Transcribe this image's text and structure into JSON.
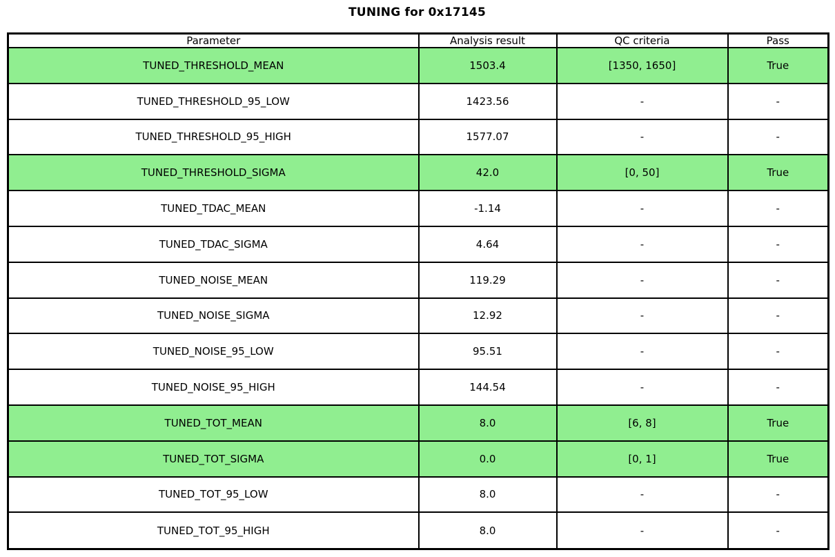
{
  "title": "TUNING for 0x17145",
  "colors": {
    "highlight_green": "#90EE90",
    "border": "#000000",
    "background": "#ffffff"
  },
  "table": {
    "columns": [
      "Parameter",
      "Analysis result",
      "QC criteria",
      "Pass"
    ],
    "rows": [
      {
        "parameter": "TUNED_THRESHOLD_MEAN",
        "result": "1503.4",
        "qc": "[1350, 1650]",
        "pass": "True",
        "highlight": true
      },
      {
        "parameter": "TUNED_THRESHOLD_95_LOW",
        "result": "1423.56",
        "qc": "-",
        "pass": "-",
        "highlight": false
      },
      {
        "parameter": "TUNED_THRESHOLD_95_HIGH",
        "result": "1577.07",
        "qc": "-",
        "pass": "-",
        "highlight": false
      },
      {
        "parameter": "TUNED_THRESHOLD_SIGMA",
        "result": "42.0",
        "qc": "[0, 50]",
        "pass": "True",
        "highlight": true
      },
      {
        "parameter": "TUNED_TDAC_MEAN",
        "result": "-1.14",
        "qc": "-",
        "pass": "-",
        "highlight": false
      },
      {
        "parameter": "TUNED_TDAC_SIGMA",
        "result": "4.64",
        "qc": "-",
        "pass": "-",
        "highlight": false
      },
      {
        "parameter": "TUNED_NOISE_MEAN",
        "result": "119.29",
        "qc": "-",
        "pass": "-",
        "highlight": false
      },
      {
        "parameter": "TUNED_NOISE_SIGMA",
        "result": "12.92",
        "qc": "-",
        "pass": "-",
        "highlight": false
      },
      {
        "parameter": "TUNED_NOISE_95_LOW",
        "result": "95.51",
        "qc": "-",
        "pass": "-",
        "highlight": false
      },
      {
        "parameter": "TUNED_NOISE_95_HIGH",
        "result": "144.54",
        "qc": "-",
        "pass": "-",
        "highlight": false
      },
      {
        "parameter": "TUNED_TOT_MEAN",
        "result": "8.0",
        "qc": "[6, 8]",
        "pass": "True",
        "highlight": true
      },
      {
        "parameter": "TUNED_TOT_SIGMA",
        "result": "0.0",
        "qc": "[0, 1]",
        "pass": "True",
        "highlight": true
      },
      {
        "parameter": "TUNED_TOT_95_LOW",
        "result": "8.0",
        "qc": "-",
        "pass": "-",
        "highlight": false
      },
      {
        "parameter": "TUNED_TOT_95_HIGH",
        "result": "8.0",
        "qc": "-",
        "pass": "-",
        "highlight": false
      }
    ]
  }
}
